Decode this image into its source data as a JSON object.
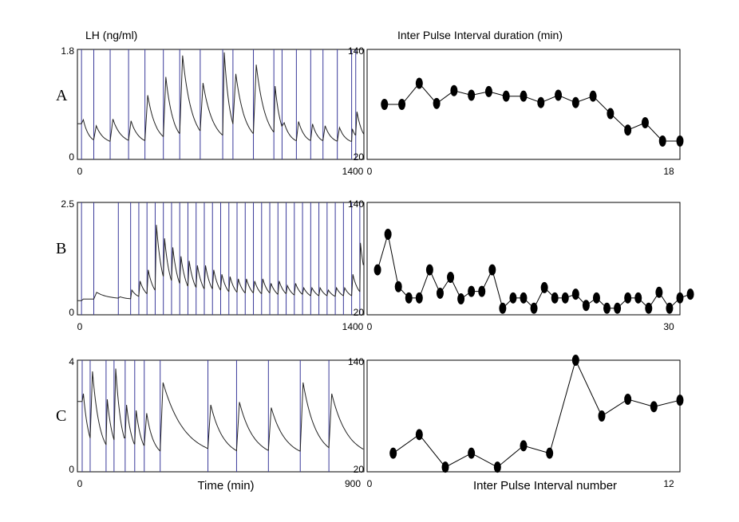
{
  "figure": {
    "left_title": "LH (ng/ml)",
    "right_title": "Inter Pulse Interval duration (min)",
    "left_xlabel": "Time (min)",
    "right_xlabel": "Inter Pulse Interval number"
  },
  "colors": {
    "pulse_line": "#3a3a9a",
    "trace": "#222222",
    "marker": "#000000"
  },
  "chart_data": [
    {
      "id": "A-lh",
      "type": "line",
      "panel_label": "A",
      "xlim": [
        0,
        1400
      ],
      "ylim": [
        0,
        1.8
      ],
      "x_ticks": [
        "0",
        "1400"
      ],
      "y_ticks": [
        "0",
        "1.8"
      ],
      "pulse_times": [
        20,
        80,
        160,
        250,
        330,
        420,
        500,
        600,
        710,
        760,
        860,
        960,
        1000,
        1070,
        1140,
        1200,
        1270,
        1340,
        1360
      ],
      "pulse_peaks": [
        0.65,
        0.55,
        0.66,
        0.63,
        1.05,
        1.35,
        1.7,
        1.25,
        1.75,
        1.4,
        1.55,
        1.2,
        0.6,
        0.62,
        0.58,
        0.55,
        0.52,
        0.5,
        0.78
      ],
      "baseline": 0.25
    },
    {
      "id": "A-ipi",
      "type": "scatter",
      "connect": true,
      "xlim": [
        0,
        18
      ],
      "ylim": [
        20,
        140
      ],
      "x_ticks": [
        "0",
        "18"
      ],
      "y_ticks": [
        "20",
        "140"
      ],
      "x": [
        1,
        2,
        3,
        4,
        5,
        6,
        7,
        8,
        9,
        10,
        11,
        12,
        13,
        14,
        15,
        16,
        17,
        18
      ],
      "y": [
        80,
        80,
        103,
        81,
        95,
        90,
        94,
        89,
        89,
        82,
        90,
        82,
        89,
        70,
        52,
        60,
        40,
        40
      ]
    },
    {
      "id": "B-lh",
      "type": "line",
      "panel_label": "B",
      "xlim": [
        0,
        1400
      ],
      "ylim": [
        0,
        2.5
      ],
      "x_ticks": [
        "0",
        "1400"
      ],
      "y_ticks": [
        "0",
        "2.5"
      ],
      "pulse_times": [
        20,
        80,
        200,
        260,
        300,
        340,
        380,
        420,
        460,
        500,
        540,
        580,
        620,
        660,
        700,
        740,
        780,
        820,
        860,
        900,
        940,
        980,
        1020,
        1060,
        1100,
        1140,
        1180,
        1220,
        1260,
        1300,
        1340,
        1380
      ],
      "pulse_peaks": [
        0.35,
        0.5,
        0.4,
        0.55,
        0.75,
        1.0,
        2.0,
        1.7,
        1.5,
        1.3,
        1.2,
        1.1,
        1.1,
        1.0,
        0.9,
        0.85,
        0.8,
        0.8,
        0.75,
        0.8,
        0.7,
        0.75,
        0.65,
        0.7,
        0.6,
        0.6,
        0.6,
        0.55,
        0.6,
        0.6,
        0.9,
        1.6
      ],
      "baseline": 0.35
    },
    {
      "id": "B-ipi",
      "type": "scatter",
      "connect": true,
      "xlim": [
        0,
        30
      ],
      "ylim": [
        20,
        140
      ],
      "x_ticks": [
        "0",
        "30"
      ],
      "y_ticks": [
        "20",
        "140"
      ],
      "x": [
        1,
        2,
        3,
        4,
        5,
        6,
        7,
        8,
        9,
        10,
        11,
        12,
        13,
        14,
        15,
        16,
        17,
        18,
        19,
        20,
        21,
        22,
        23,
        24,
        25,
        26,
        27,
        28,
        29,
        30,
        31
      ],
      "y": [
        68,
        106,
        50,
        38,
        38,
        68,
        43,
        60,
        37,
        45,
        45,
        68,
        27,
        38,
        38,
        27,
        49,
        38,
        38,
        42,
        30,
        38,
        27,
        27,
        38,
        38,
        27,
        44,
        27,
        38,
        42
      ]
    },
    {
      "id": "C-lh",
      "type": "line",
      "panel_label": "C",
      "xlim": [
        0,
        900
      ],
      "ylim": [
        0,
        4
      ],
      "x_ticks": [
        "0",
        "900"
      ],
      "y_ticks": [
        "0",
        "4"
      ],
      "pulse_times": [
        15,
        40,
        90,
        115,
        150,
        180,
        210,
        260,
        410,
        500,
        600,
        700,
        790
      ],
      "pulse_peaks": [
        2.8,
        3.6,
        2.6,
        3.7,
        2.4,
        2.2,
        2.1,
        3.2,
        2.4,
        2.5,
        2.3,
        3.2,
        2.8
      ],
      "baseline": 0.5
    },
    {
      "id": "C-ipi",
      "type": "scatter",
      "connect": true,
      "xlim": [
        0,
        12
      ],
      "ylim": [
        20,
        140
      ],
      "x_ticks": [
        "0",
        "12"
      ],
      "y_ticks": [
        "20",
        "140"
      ],
      "x": [
        1,
        2,
        3,
        4,
        5,
        6,
        7,
        8,
        9,
        10,
        11,
        12
      ],
      "y": [
        40,
        60,
        25,
        40,
        25,
        48,
        40,
        140,
        80,
        98,
        90,
        97
      ]
    }
  ]
}
